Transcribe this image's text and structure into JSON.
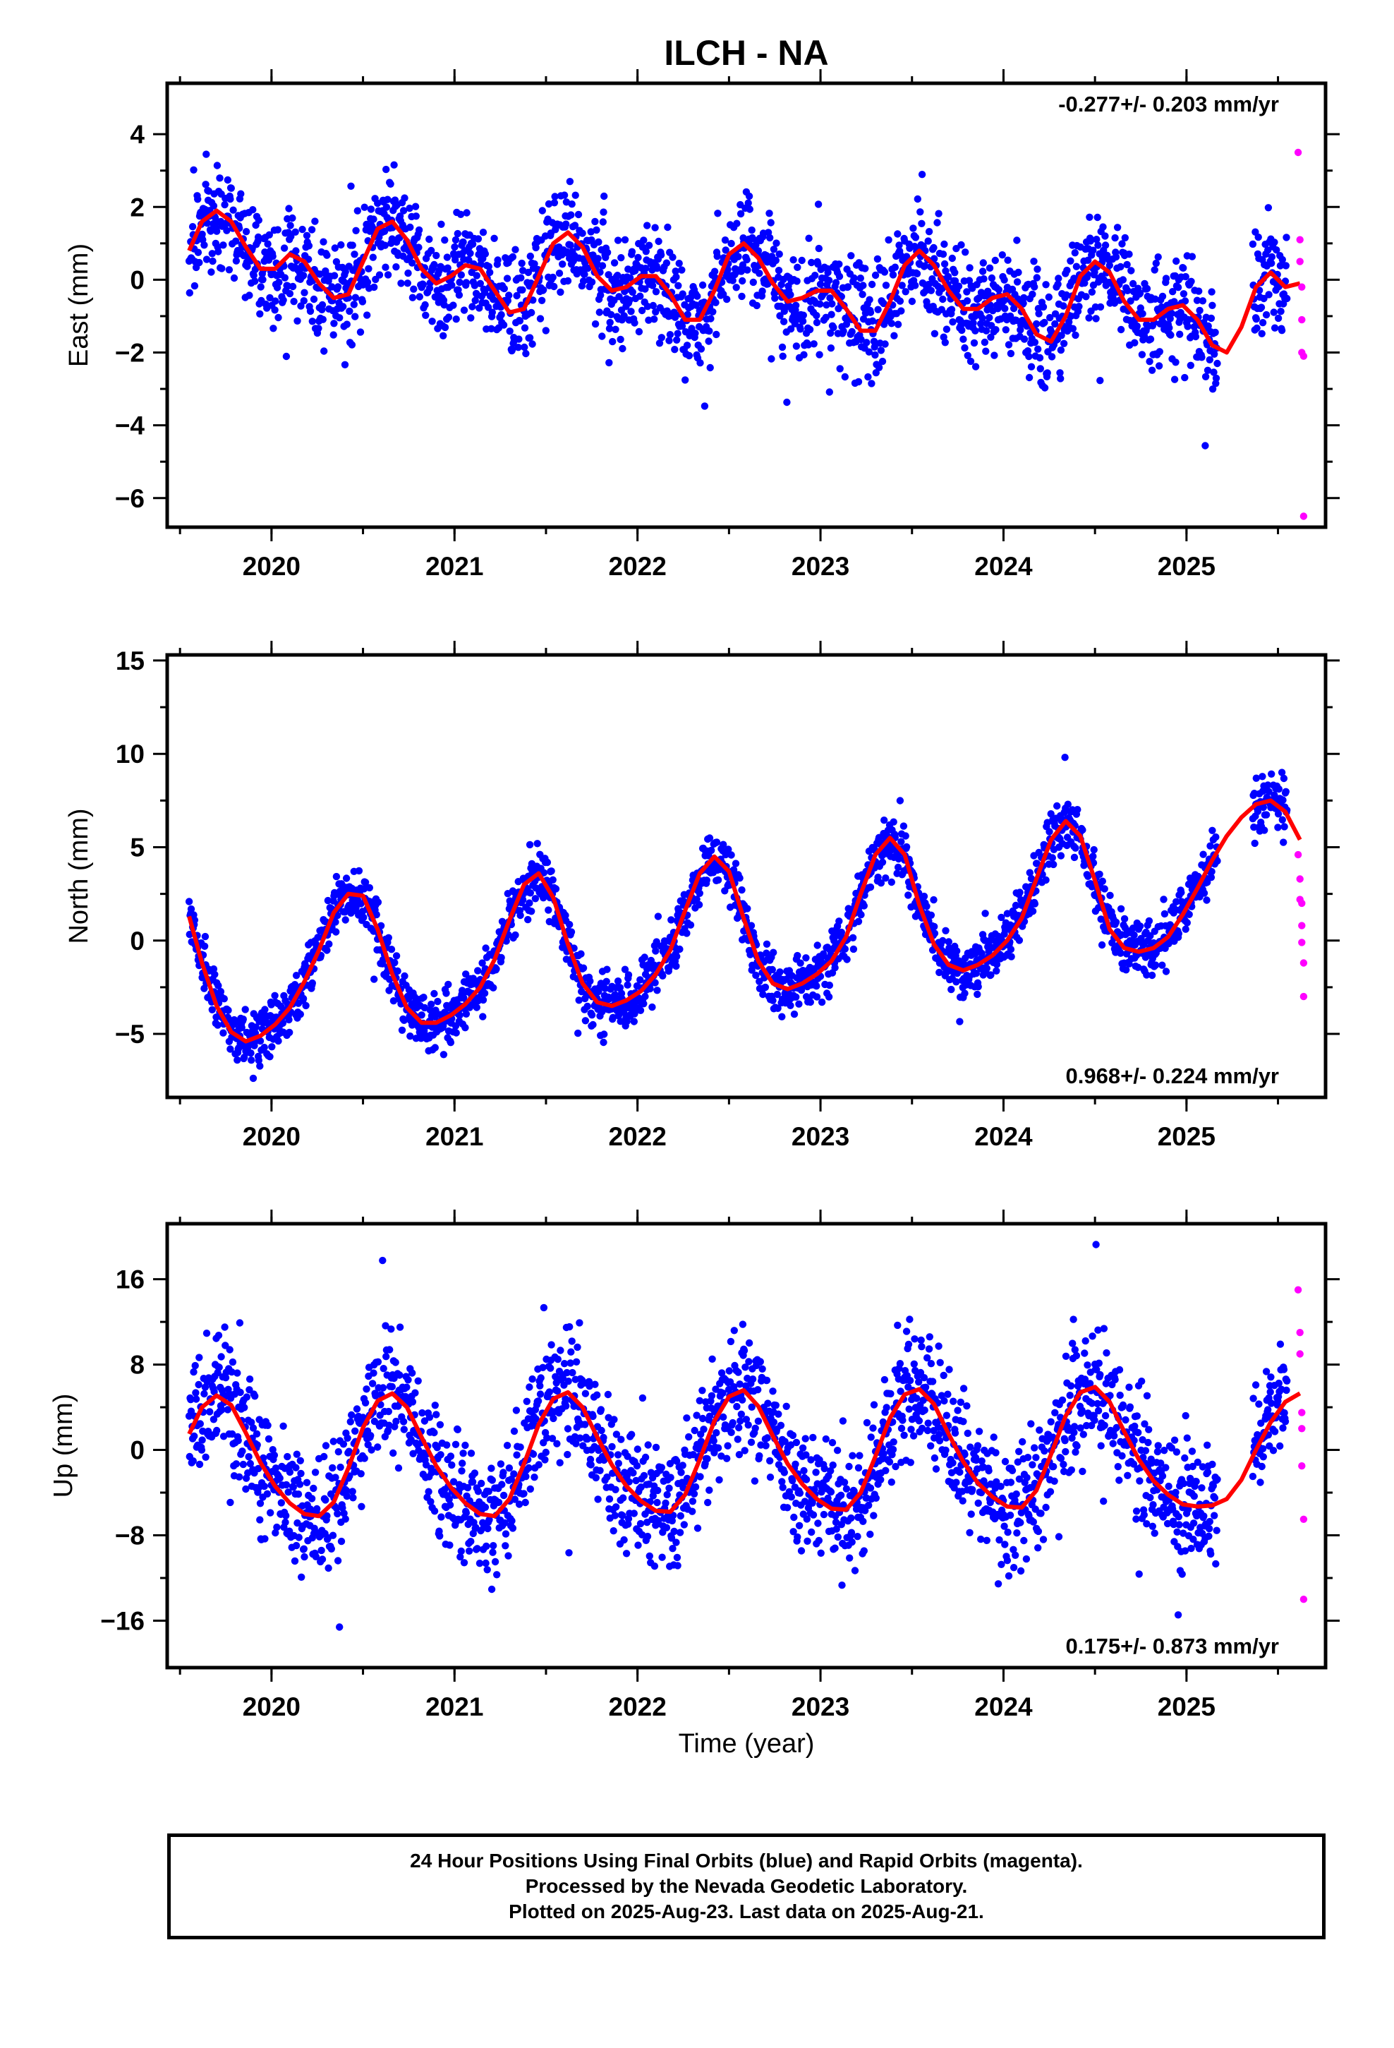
{
  "title": "ILCH - NA",
  "colors": {
    "final": "#0000ff",
    "rapid": "#ff00ff",
    "model": "#ff0000",
    "frame": "#000000"
  },
  "xlabel": "Time (year)",
  "caption": [
    "24 Hour Positions Using Final Orbits (blue) and Rapid Orbits (magenta).",
    "Processed by the Nevada Geodetic Laboratory.",
    "Plotted on 2025-Aug-23. Last data on 2025-Aug-21."
  ],
  "chart_data": [
    {
      "type": "scatter",
      "panel": "east",
      "ylabel": "East (mm)",
      "rate_label": "-0.277+/- 0.203 mm/yr",
      "rate_label_position": "top-right",
      "xlim": [
        2019.43,
        2025.76
      ],
      "ylim": [
        -6.8,
        5.4
      ],
      "xticks": [
        2020,
        2021,
        2022,
        2023,
        2024,
        2025
      ],
      "xtick_labels": [
        "2020",
        "2021",
        "2022",
        "2023",
        "2024",
        "2025"
      ],
      "yticks": [
        -6,
        -4,
        -2,
        0,
        2,
        4
      ],
      "ytick_labels": [
        "−6",
        "−4",
        "−2",
        "0",
        "2",
        "4"
      ],
      "model_curve": {
        "x": [
          2019.55,
          2019.62,
          2019.7,
          2019.78,
          2019.86,
          2019.94,
          2020.02,
          2020.1,
          2020.18,
          2020.26,
          2020.34,
          2020.42,
          2020.5,
          2020.58,
          2020.66,
          2020.74,
          2020.82,
          2020.9,
          2020.98,
          2021.06,
          2021.14,
          2021.22,
          2021.3,
          2021.38,
          2021.46,
          2021.54,
          2021.62,
          2021.7,
          2021.78,
          2021.86,
          2021.94,
          2022.02,
          2022.1,
          2022.18,
          2022.26,
          2022.34,
          2022.42,
          2022.5,
          2022.58,
          2022.66,
          2022.74,
          2022.82,
          2022.9,
          2022.98,
          2023.06,
          2023.14,
          2023.22,
          2023.3,
          2023.38,
          2023.46,
          2023.54,
          2023.62,
          2023.7,
          2023.78,
          2023.86,
          2023.94,
          2024.02,
          2024.1,
          2024.18,
          2024.26,
          2024.34,
          2024.42,
          2024.5,
          2024.58,
          2024.66,
          2024.74,
          2024.82,
          2024.9,
          2024.98,
          2025.06,
          2025.14,
          2025.22,
          2025.3,
          2025.38,
          2025.46,
          2025.54,
          2025.62
        ],
        "y": [
          0.8,
          1.6,
          1.9,
          1.6,
          0.9,
          0.3,
          0.3,
          0.7,
          0.5,
          -0.1,
          -0.5,
          -0.4,
          0.5,
          1.4,
          1.6,
          1.1,
          0.3,
          -0.1,
          0.1,
          0.4,
          0.3,
          -0.3,
          -0.9,
          -0.8,
          0.1,
          1.0,
          1.3,
          0.9,
          0.1,
          -0.3,
          -0.2,
          0.1,
          0.1,
          -0.4,
          -1.1,
          -1.1,
          -0.3,
          0.7,
          1.0,
          0.6,
          -0.1,
          -0.6,
          -0.5,
          -0.3,
          -0.3,
          -0.8,
          -1.4,
          -1.4,
          -0.6,
          0.4,
          0.8,
          0.4,
          -0.3,
          -0.8,
          -0.8,
          -0.5,
          -0.4,
          -0.8,
          -1.5,
          -1.7,
          -1.0,
          0.1,
          0.5,
          0.2,
          -0.6,
          -1.1,
          -1.1,
          -0.8,
          -0.7,
          -1.1,
          -1.8,
          -2.0,
          -1.3,
          -0.2,
          0.2,
          -0.2,
          -0.1
        ]
      },
      "final_summary": {
        "start": "2019.55",
        "end": "2025.55",
        "mean_rate_mm_yr": -0.277,
        "scatter_mm": 1.0
      },
      "rapid_points": {
        "x": [
          2025.61,
          2025.62,
          2025.62,
          2025.63,
          2025.63,
          2025.63,
          2025.64,
          2025.64
        ],
        "y": [
          3.5,
          1.1,
          0.5,
          -0.2,
          -1.1,
          -2.0,
          -2.1,
          -6.5
        ]
      }
    },
    {
      "type": "scatter",
      "panel": "north",
      "ylabel": "North (mm)",
      "rate_label": "0.968+/- 0.224 mm/yr",
      "rate_label_position": "bottom-right",
      "xlim": [
        2019.43,
        2025.76
      ],
      "ylim": [
        -8.4,
        15.3
      ],
      "xticks": [
        2020,
        2021,
        2022,
        2023,
        2024,
        2025
      ],
      "xtick_labels": [
        "2020",
        "2021",
        "2022",
        "2023",
        "2024",
        "2025"
      ],
      "yticks": [
        -5,
        0,
        5,
        10,
        15
      ],
      "ytick_labels": [
        "−5",
        "0",
        "5",
        "10",
        "15"
      ],
      "model_curve": {
        "x": [
          2019.55,
          2019.62,
          2019.7,
          2019.78,
          2019.86,
          2019.94,
          2020.02,
          2020.1,
          2020.18,
          2020.26,
          2020.34,
          2020.42,
          2020.5,
          2020.58,
          2020.66,
          2020.74,
          2020.82,
          2020.9,
          2020.98,
          2021.06,
          2021.14,
          2021.22,
          2021.3,
          2021.38,
          2021.46,
          2021.54,
          2021.62,
          2021.7,
          2021.78,
          2021.86,
          2021.94,
          2022.02,
          2022.1,
          2022.18,
          2022.26,
          2022.34,
          2022.42,
          2022.5,
          2022.58,
          2022.66,
          2022.74,
          2022.82,
          2022.9,
          2022.98,
          2023.06,
          2023.14,
          2023.22,
          2023.3,
          2023.38,
          2023.46,
          2023.54,
          2023.62,
          2023.7,
          2023.78,
          2023.86,
          2023.94,
          2024.02,
          2024.1,
          2024.18,
          2024.26,
          2024.34,
          2024.42,
          2024.5,
          2024.58,
          2024.66,
          2024.74,
          2024.82,
          2024.9,
          2024.98,
          2025.06,
          2025.14,
          2025.22,
          2025.3,
          2025.38,
          2025.46,
          2025.54,
          2025.62
        ],
        "y": [
          1.3,
          -1.2,
          -3.5,
          -4.9,
          -5.4,
          -5.1,
          -4.5,
          -3.6,
          -2.2,
          -0.5,
          1.5,
          2.5,
          2.4,
          0.6,
          -1.8,
          -3.6,
          -4.4,
          -4.4,
          -4.0,
          -3.4,
          -2.5,
          -1.0,
          1.1,
          3.0,
          3.6,
          2.3,
          -0.2,
          -2.3,
          -3.3,
          -3.5,
          -3.2,
          -2.7,
          -1.8,
          -0.5,
          1.6,
          3.6,
          4.5,
          3.7,
          1.2,
          -1.1,
          -2.3,
          -2.6,
          -2.3,
          -1.8,
          -1.1,
          0.2,
          2.5,
          4.6,
          5.5,
          4.6,
          1.9,
          -0.2,
          -1.3,
          -1.6,
          -1.3,
          -0.8,
          0.0,
          1.2,
          3.3,
          5.4,
          6.4,
          5.6,
          3.2,
          0.6,
          -0.4,
          -0.6,
          -0.4,
          0.2,
          1.4,
          2.8,
          4.3,
          5.6,
          6.6,
          7.3,
          7.5,
          6.9,
          5.4
        ]
      },
      "final_summary": {
        "start": "2019.55",
        "end": "2025.55",
        "mean_rate_mm_yr": 0.968,
        "scatter_mm": 1.0
      },
      "rapid_points": {
        "x": [
          2025.61,
          2025.62,
          2025.62,
          2025.63,
          2025.63,
          2025.63,
          2025.64,
          2025.64
        ],
        "y": [
          4.6,
          3.3,
          2.2,
          2.0,
          0.8,
          -0.1,
          -1.2,
          -3.0
        ]
      }
    },
    {
      "type": "scatter",
      "panel": "up",
      "ylabel": "Up (mm)",
      "rate_label": "0.175+/- 0.873 mm/yr",
      "rate_label_position": "bottom-right",
      "xlim": [
        2019.43,
        2025.76
      ],
      "ylim": [
        -20.4,
        21.2
      ],
      "xticks": [
        2020,
        2021,
        2022,
        2023,
        2024,
        2025
      ],
      "xtick_labels": [
        "2020",
        "2021",
        "2022",
        "2023",
        "2024",
        "2025"
      ],
      "yticks": [
        -16,
        -8,
        0,
        8,
        16
      ],
      "ytick_labels": [
        "−16",
        "−8",
        "0",
        "8",
        "16"
      ],
      "model_curve": {
        "x": [
          2019.55,
          2019.62,
          2019.7,
          2019.78,
          2019.86,
          2019.94,
          2020.02,
          2020.1,
          2020.18,
          2020.26,
          2020.34,
          2020.42,
          2020.5,
          2020.58,
          2020.66,
          2020.74,
          2020.82,
          2020.9,
          2020.98,
          2021.06,
          2021.14,
          2021.22,
          2021.3,
          2021.38,
          2021.46,
          2021.54,
          2021.62,
          2021.7,
          2021.78,
          2021.86,
          2021.94,
          2022.02,
          2022.1,
          2022.18,
          2022.26,
          2022.34,
          2022.42,
          2022.5,
          2022.58,
          2022.66,
          2022.74,
          2022.82,
          2022.9,
          2022.98,
          2023.06,
          2023.14,
          2023.22,
          2023.3,
          2023.38,
          2023.46,
          2023.54,
          2023.62,
          2023.7,
          2023.78,
          2023.86,
          2023.94,
          2024.02,
          2024.1,
          2024.18,
          2024.26,
          2024.34,
          2024.42,
          2024.5,
          2024.58,
          2024.66,
          2024.74,
          2024.82,
          2024.9,
          2024.98,
          2025.06,
          2025.14,
          2025.22,
          2025.3,
          2025.38,
          2025.46,
          2025.54,
          2025.62
        ],
        "y": [
          1.5,
          4.0,
          5.1,
          4.2,
          1.6,
          -1.2,
          -3.4,
          -5.0,
          -6.0,
          -6.2,
          -4.9,
          -1.7,
          2.1,
          4.6,
          5.3,
          4.0,
          1.2,
          -1.5,
          -3.5,
          -5.0,
          -6.0,
          -6.2,
          -4.6,
          -1.3,
          2.4,
          4.8,
          5.4,
          4.0,
          1.2,
          -1.4,
          -3.4,
          -4.8,
          -5.7,
          -5.8,
          -4.2,
          -0.9,
          2.7,
          5.0,
          5.6,
          4.1,
          1.3,
          -1.3,
          -3.2,
          -4.6,
          -5.5,
          -5.6,
          -4.0,
          -0.6,
          3.0,
          5.2,
          5.7,
          4.3,
          1.5,
          -1.1,
          -3.1,
          -4.4,
          -5.3,
          -5.4,
          -3.8,
          -0.4,
          3.2,
          5.4,
          5.9,
          4.5,
          1.7,
          -0.9,
          -2.9,
          -4.2,
          -5.1,
          -5.3,
          -5.2,
          -4.6,
          -2.8,
          0.0,
          2.6,
          4.5,
          5.3
        ]
      },
      "final_summary": {
        "start": "2019.55",
        "end": "2025.55",
        "mean_rate_mm_yr": 0.175,
        "scatter_mm": 4.0
      },
      "rapid_points": {
        "x": [
          2025.61,
          2025.62,
          2025.62,
          2025.63,
          2025.63,
          2025.63,
          2025.64,
          2025.64
        ],
        "y": [
          15.0,
          11.0,
          9.0,
          3.5,
          2.0,
          -1.5,
          -6.5,
          -14.0
        ]
      }
    }
  ]
}
